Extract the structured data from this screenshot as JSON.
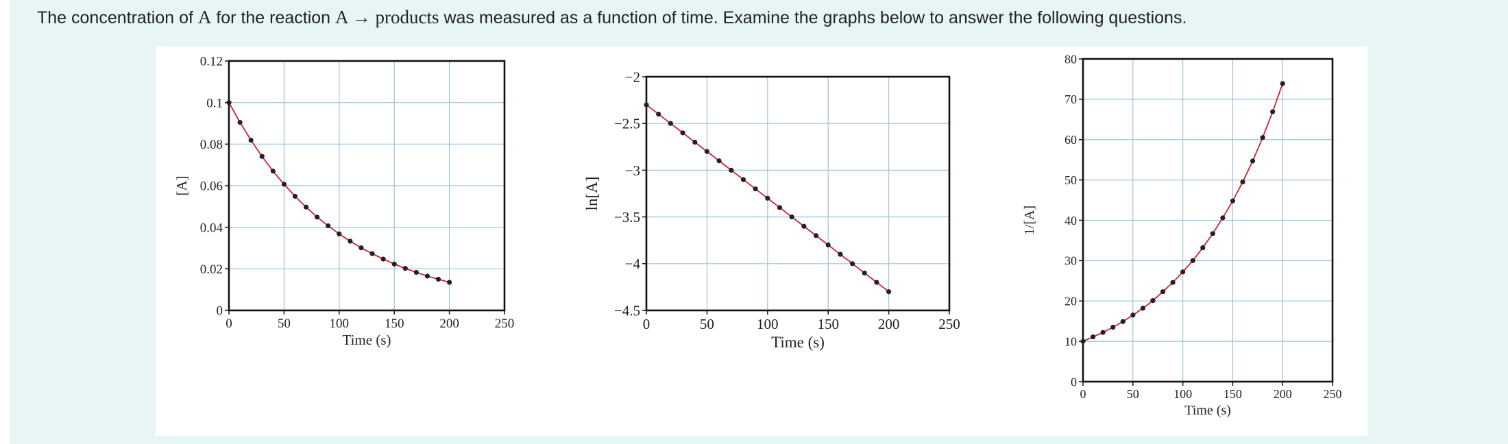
{
  "question": {
    "prefix": "The concentration of ",
    "species": "A",
    "middle": " for the reaction ",
    "reaction": "A → products",
    "suffix": " was measured as a function of time. Examine the graphs below to answer the following questions."
  },
  "chart_data": [
    {
      "type": "line",
      "title": "",
      "xlabel": "Time (s)",
      "ylabel": "[A]",
      "xlim": [
        0,
        250
      ],
      "ylim": [
        0,
        0.12
      ],
      "xticks": [
        0,
        50,
        100,
        150,
        200,
        250
      ],
      "xtick_labels": [
        "0",
        "50",
        "100",
        "150",
        "200",
        "250"
      ],
      "yticks": [
        0,
        0.02,
        0.04,
        0.06,
        0.08,
        0.1,
        0.12
      ],
      "ytick_labels": [
        "0",
        "0.02",
        "0.04",
        "0.06",
        "0.08",
        "0.1",
        "0.12"
      ],
      "grid": true,
      "series": [
        {
          "x": [
            0,
            10,
            20,
            30,
            40,
            50,
            60,
            70,
            80,
            90,
            100,
            110,
            120,
            130,
            140,
            150,
            160,
            170,
            180,
            190,
            200
          ],
          "y": [
            0.1,
            0.0905,
            0.0819,
            0.0741,
            0.067,
            0.0607,
            0.0549,
            0.0497,
            0.0449,
            0.0407,
            0.0368,
            0.0333,
            0.0301,
            0.0273,
            0.0247,
            0.0223,
            0.0202,
            0.0183,
            0.0165,
            0.015,
            0.0135
          ]
        }
      ],
      "colors": {
        "line": "#d12030",
        "marker": "#222222",
        "grid": "#9cc3dc"
      }
    },
    {
      "type": "line",
      "title": "",
      "xlabel": "Time (s)",
      "ylabel": "ln[A]",
      "xlim": [
        0,
        250
      ],
      "ylim": [
        -4.5,
        -2
      ],
      "xticks": [
        0,
        50,
        100,
        150,
        200,
        250
      ],
      "xtick_labels": [
        "0",
        "50",
        "100",
        "150",
        "200",
        "250"
      ],
      "yticks": [
        -4.5,
        -4,
        -3.5,
        -3,
        -2.5,
        -2
      ],
      "ytick_labels": [
        "−4.5",
        "−4",
        "−3.5",
        "−3",
        "−2.5",
        "−2"
      ],
      "grid": true,
      "series": [
        {
          "x": [
            0,
            10,
            20,
            30,
            40,
            50,
            60,
            70,
            80,
            90,
            100,
            110,
            120,
            130,
            140,
            150,
            160,
            170,
            180,
            190,
            200
          ],
          "y": [
            -2.3,
            -2.4,
            -2.5,
            -2.6,
            -2.7,
            -2.8,
            -2.9,
            -3.0,
            -3.1,
            -3.2,
            -3.3,
            -3.4,
            -3.5,
            -3.6,
            -3.7,
            -3.8,
            -3.9,
            -4.0,
            -4.1,
            -4.2,
            -4.3
          ]
        }
      ],
      "colors": {
        "line": "#d12030",
        "marker": "#222222",
        "grid": "#9cc3dc"
      }
    },
    {
      "type": "line",
      "title": "",
      "xlabel": "Time (s)",
      "ylabel": "1/[A]",
      "xlim": [
        0,
        250
      ],
      "ylim": [
        0,
        80
      ],
      "xticks": [
        0,
        50,
        100,
        150,
        200,
        250
      ],
      "xtick_labels": [
        "0",
        "50",
        "100",
        "150",
        "200",
        "250"
      ],
      "yticks": [
        0,
        10,
        20,
        30,
        40,
        50,
        60,
        70,
        80
      ],
      "ytick_labels": [
        "0",
        "10",
        "20",
        "30",
        "40",
        "50",
        "60",
        "70",
        "80"
      ],
      "grid": true,
      "series": [
        {
          "x": [
            0,
            10,
            20,
            30,
            40,
            50,
            60,
            70,
            80,
            90,
            100,
            110,
            120,
            130,
            140,
            150,
            160,
            170,
            180,
            190,
            200
          ],
          "y": [
            10.0,
            11.1,
            12.2,
            13.5,
            14.9,
            16.5,
            18.2,
            20.1,
            22.3,
            24.6,
            27.2,
            30.0,
            33.2,
            36.7,
            40.6,
            44.8,
            49.5,
            54.7,
            60.5,
            66.9,
            73.9
          ]
        }
      ],
      "colors": {
        "line": "#d12030",
        "marker": "#222222",
        "grid": "#9cc3dc"
      }
    }
  ]
}
